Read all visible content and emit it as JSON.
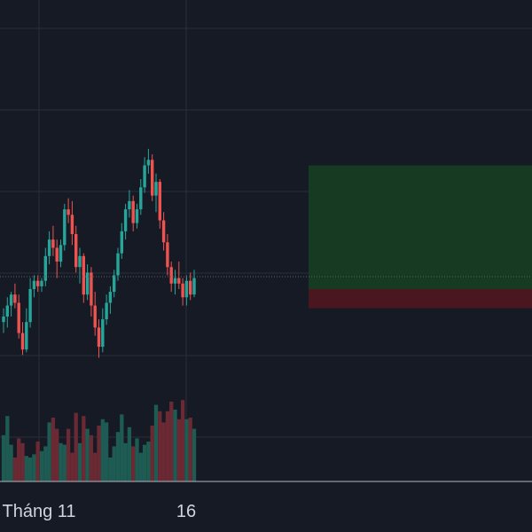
{
  "chart_data": {
    "type": "candlestick",
    "x_tick_labels": [
      "Tháng 11",
      "16"
    ],
    "y_range": [
      0,
      100
    ],
    "last_price": 44.5,
    "colors": {
      "background": "#161a25",
      "grid": "#2a2e39",
      "up": "#26a69a",
      "down": "#ef5350",
      "volume_up": "#1e5b53",
      "volume_down": "#6b2a33",
      "target_zone": "#163b22",
      "stop_zone": "#4a1720",
      "axis_line": "#b2b5be"
    },
    "position_tool": {
      "entry": 40.0,
      "take_profit": 85.0,
      "stop_loss": 33.0
    },
    "candles": [
      {
        "o": 28,
        "h": 33,
        "l": 24,
        "c": 30
      },
      {
        "o": 30,
        "h": 37,
        "l": 26,
        "c": 34
      },
      {
        "o": 34,
        "h": 39,
        "l": 30,
        "c": 38
      },
      {
        "o": 38,
        "h": 42,
        "l": 33,
        "c": 35
      },
      {
        "o": 35,
        "h": 38,
        "l": 22,
        "c": 24
      },
      {
        "o": 24,
        "h": 28,
        "l": 16,
        "c": 18
      },
      {
        "o": 18,
        "h": 33,
        "l": 17,
        "c": 28
      },
      {
        "o": 28,
        "h": 44,
        "l": 26,
        "c": 40
      },
      {
        "o": 40,
        "h": 45,
        "l": 37,
        "c": 43
      },
      {
        "o": 43,
        "h": 45,
        "l": 39,
        "c": 41
      },
      {
        "o": 41,
        "h": 44,
        "l": 39,
        "c": 43
      },
      {
        "o": 43,
        "h": 55,
        "l": 41,
        "c": 52
      },
      {
        "o": 52,
        "h": 61,
        "l": 49,
        "c": 58
      },
      {
        "o": 58,
        "h": 63,
        "l": 52,
        "c": 55
      },
      {
        "o": 55,
        "h": 58,
        "l": 44,
        "c": 50
      },
      {
        "o": 50,
        "h": 58,
        "l": 48,
        "c": 56
      },
      {
        "o": 56,
        "h": 71,
        "l": 54,
        "c": 69
      },
      {
        "o": 69,
        "h": 73,
        "l": 64,
        "c": 67
      },
      {
        "o": 67,
        "h": 72,
        "l": 56,
        "c": 60
      },
      {
        "o": 60,
        "h": 63,
        "l": 46,
        "c": 48
      },
      {
        "o": 48,
        "h": 55,
        "l": 42,
        "c": 52
      },
      {
        "o": 52,
        "h": 53,
        "l": 35,
        "c": 38
      },
      {
        "o": 38,
        "h": 49,
        "l": 36,
        "c": 46
      },
      {
        "o": 46,
        "h": 48,
        "l": 30,
        "c": 34
      },
      {
        "o": 34,
        "h": 39,
        "l": 23,
        "c": 26
      },
      {
        "o": 26,
        "h": 29,
        "l": 15,
        "c": 19
      },
      {
        "o": 19,
        "h": 33,
        "l": 17,
        "c": 29
      },
      {
        "o": 29,
        "h": 38,
        "l": 27,
        "c": 35
      },
      {
        "o": 35,
        "h": 41,
        "l": 31,
        "c": 39
      },
      {
        "o": 39,
        "h": 47,
        "l": 37,
        "c": 45
      },
      {
        "o": 45,
        "h": 55,
        "l": 43,
        "c": 53
      },
      {
        "o": 53,
        "h": 64,
        "l": 51,
        "c": 61
      },
      {
        "o": 61,
        "h": 71,
        "l": 58,
        "c": 69
      },
      {
        "o": 69,
        "h": 76,
        "l": 66,
        "c": 72
      },
      {
        "o": 72,
        "h": 74,
        "l": 61,
        "c": 64
      },
      {
        "o": 64,
        "h": 71,
        "l": 62,
        "c": 69
      },
      {
        "o": 69,
        "h": 80,
        "l": 67,
        "c": 77
      },
      {
        "o": 77,
        "h": 88,
        "l": 75,
        "c": 85
      },
      {
        "o": 85,
        "h": 91,
        "l": 82,
        "c": 87
      },
      {
        "o": 87,
        "h": 89,
        "l": 72,
        "c": 74
      },
      {
        "o": 74,
        "h": 82,
        "l": 68,
        "c": 79
      },
      {
        "o": 79,
        "h": 80,
        "l": 62,
        "c": 65
      },
      {
        "o": 65,
        "h": 68,
        "l": 54,
        "c": 57
      },
      {
        "o": 57,
        "h": 60,
        "l": 45,
        "c": 48
      },
      {
        "o": 48,
        "h": 50,
        "l": 39,
        "c": 42
      },
      {
        "o": 42,
        "h": 47,
        "l": 38,
        "c": 44
      },
      {
        "o": 44,
        "h": 50,
        "l": 40,
        "c": 42
      },
      {
        "o": 42,
        "h": 44,
        "l": 34,
        "c": 37
      },
      {
        "o": 37,
        "h": 45,
        "l": 34,
        "c": 43
      },
      {
        "o": 43,
        "h": 46,
        "l": 36,
        "c": 38
      },
      {
        "o": 38,
        "h": 47,
        "l": 37,
        "c": 44
      }
    ],
    "volume": [
      29,
      41,
      23,
      15,
      27,
      24,
      16,
      15,
      17,
      25,
      19,
      22,
      37,
      40,
      33,
      24,
      23,
      33,
      18,
      43,
      24,
      41,
      33,
      29,
      18,
      35,
      39,
      37,
      15,
      22,
      31,
      42,
      24,
      34,
      22,
      27,
      18,
      23,
      25,
      35,
      48,
      44,
      37,
      44,
      50,
      45,
      39,
      51,
      39,
      40,
      33
    ]
  }
}
